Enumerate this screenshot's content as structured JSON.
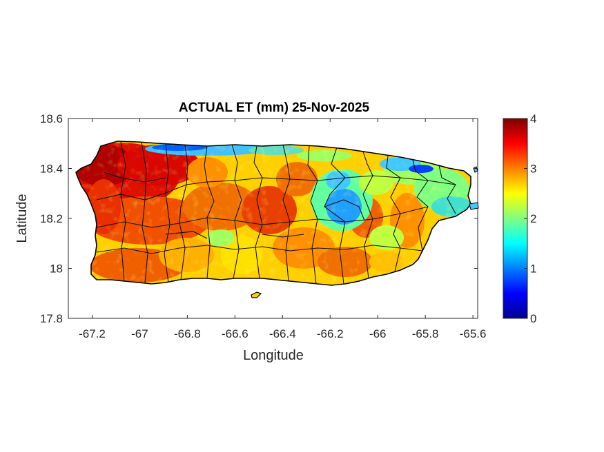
{
  "map": {
    "title": "ACTUAL ET (mm) 25-Nov-2025",
    "xlabel": "Longitude",
    "ylabel": "Latitude",
    "xlim": [
      -67.3,
      -65.58
    ],
    "ylim": [
      17.8,
      18.6
    ],
    "x_ticks": [
      "-67.2",
      "-67",
      "-66.8",
      "-66.6",
      "-66.4",
      "-66.2",
      "-66",
      "-65.8",
      "-65.6"
    ],
    "x_tick_values": [
      -67.2,
      -67.0,
      -66.8,
      -66.6,
      -66.4,
      -66.2,
      -66.0,
      -65.8,
      -65.6
    ],
    "y_ticks": [
      "18.6",
      "18.4",
      "18.2",
      "18"
    ],
    "y_tick_values": [
      18.6,
      18.4,
      18.2,
      18.0
    ],
    "y_bottom_tick": "17.8",
    "colormap": "jet",
    "colorbar": {
      "ticks": [
        "4",
        "3",
        "2",
        "1",
        "0"
      ],
      "tick_values": [
        4,
        3,
        2,
        1,
        0
      ],
      "range": [
        0,
        4
      ]
    },
    "colors": {
      "dark_red": "#7f0000",
      "red": "#ff0000",
      "orange": "#ff8000",
      "yellow": "#ffff00",
      "cyan": "#00ffff",
      "blue": "#0000ff",
      "dark_blue": "#00008f",
      "outline": "#000000"
    }
  }
}
